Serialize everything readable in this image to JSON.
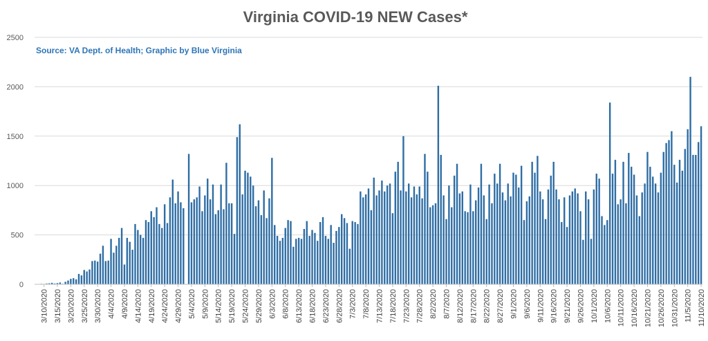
{
  "chart_data": {
    "type": "bar",
    "title": "Virginia COVID-19 NEW Cases*",
    "annotation": "Source: VA Dept. of Health; Graphic by Blue Virginia",
    "xlabel": "",
    "ylabel": "",
    "ylim": [
      0,
      2500
    ],
    "yticks": [
      "0",
      "500",
      "1000",
      "1500",
      "2000",
      "2500"
    ],
    "grid": true,
    "legend": "none",
    "bar_color": "#2e6da4",
    "x_start": "3/7/2020",
    "x_tick_labels": [
      "3/10/2020",
      "3/15/2020",
      "3/20/2020",
      "3/25/2020",
      "3/30/2020",
      "4/4/2020",
      "4/9/2020",
      "4/14/2020",
      "4/19/2020",
      "4/24/2020",
      "4/29/2020",
      "5/4/2020",
      "5/9/2020",
      "5/14/2020",
      "5/19/2020",
      "5/24/2020",
      "5/29/2020",
      "6/3/2020",
      "6/8/2020",
      "6/13/2020",
      "6/18/2020",
      "6/23/2020",
      "6/28/2020",
      "7/3/2020",
      "7/8/2020",
      "7/13/2020",
      "7/18/2020",
      "7/23/2020",
      "7/28/2020",
      "8/2/2020",
      "8/7/2020",
      "8/12/2020",
      "8/17/2020",
      "8/22/2020",
      "8/27/2020",
      "9/1/2020",
      "9/6/2020",
      "9/11/2020",
      "9/16/2020",
      "9/21/2020",
      "9/26/2020",
      "10/1/2020",
      "10/6/2020",
      "10/11/2020",
      "10/16/2020",
      "10/21/2020",
      "10/26/2020",
      "10/31/2020",
      "11/5/2020",
      "11/10/2020"
    ],
    "values": [
      2,
      3,
      5,
      4,
      8,
      10,
      15,
      8,
      12,
      18,
      5,
      25,
      38,
      55,
      62,
      50,
      105,
      90,
      145,
      130,
      150,
      235,
      240,
      230,
      310,
      390,
      235,
      240,
      460,
      320,
      390,
      470,
      570,
      200,
      470,
      430,
      350,
      610,
      550,
      500,
      470,
      650,
      630,
      740,
      680,
      780,
      610,
      570,
      810,
      620,
      880,
      1060,
      820,
      940,
      830,
      770,
      0,
      1320,
      830,
      860,
      880,
      990,
      740,
      900,
      1070,
      860,
      1010,
      710,
      750,
      1010,
      760,
      1230,
      820,
      820,
      510,
      1490,
      1620,
      910,
      1150,
      1130,
      1090,
      1000,
      790,
      850,
      700,
      950,
      670,
      870,
      1280,
      600,
      490,
      440,
      470,
      570,
      650,
      640,
      380,
      460,
      470,
      460,
      560,
      640,
      490,
      550,
      520,
      440,
      630,
      680,
      490,
      460,
      600,
      420,
      540,
      580,
      710,
      670,
      620,
      360,
      640,
      630,
      610,
      940,
      880,
      910,
      970,
      750,
      1080,
      900,
      950,
      1050,
      940,
      1000,
      1020,
      720,
      1140,
      1240,
      950,
      1500,
      940,
      1020,
      880,
      990,
      910,
      990,
      870,
      1320,
      1140,
      780,
      800,
      820,
      2010,
      1310,
      900,
      660,
      1000,
      780,
      1100,
      1220,
      920,
      940,
      740,
      730,
      1010,
      740,
      850,
      980,
      1220,
      900,
      660,
      1010,
      820,
      1120,
      1020,
      1220,
      930,
      850,
      1020,
      890,
      1130,
      1110,
      980,
      1200,
      650,
      840,
      890,
      1240,
      1130,
      1300,
      940,
      860,
      660,
      960,
      1100,
      1240,
      960,
      860,
      630,
      880,
      580,
      900,
      940,
      970,
      920,
      740,
      450,
      940,
      860,
      460,
      960,
      1120,
      1070,
      690,
      600,
      650,
      1840,
      1120,
      1260,
      810,
      860,
      1240,
      820,
      1330,
      1190,
      1110,
      900,
      690,
      930,
      1020,
      1340,
      1190,
      1090,
      1020,
      930,
      1130,
      1340,
      1430,
      1460,
      1550,
      1210,
      1030,
      1260,
      1150,
      1370,
      1570,
      2100,
      1310,
      1310,
      1440,
      1600
    ]
  }
}
